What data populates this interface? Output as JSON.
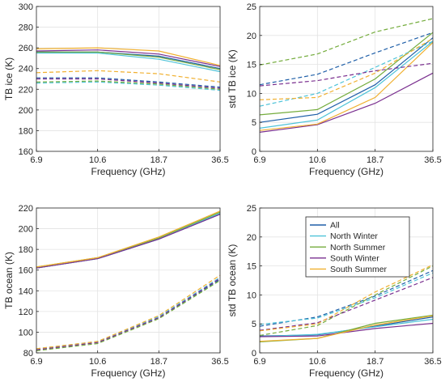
{
  "colors": {
    "All": "#1f5fa8",
    "North Winter": "#4ec3d8",
    "North Summer": "#74ac3c",
    "South Winter": "#7a2f8f",
    "South Summer": "#f0b030",
    "axis": "#262626",
    "grid": "#ffffff"
  },
  "legend_entries": [
    "All",
    "North Winter",
    "North Summer",
    "South Winter",
    "South Summer"
  ],
  "chart_data": [
    {
      "type": "line",
      "position": "top-left",
      "x": [
        "6.9",
        "10.6",
        "18.7",
        "36.5"
      ],
      "xlabel": "Frequency (GHz)",
      "ylabel": "TB ice (K)",
      "ylim": [
        160,
        300
      ],
      "yticks": [
        "160",
        "180",
        "200",
        "220",
        "240",
        "260",
        "280",
        "300"
      ],
      "legend": "none",
      "series": [
        {
          "name": "All",
          "style": "solid",
          "values": [
            256,
            256,
            252,
            240
          ]
        },
        {
          "name": "North Winter",
          "style": "solid",
          "values": [
            255,
            255,
            249,
            237
          ]
        },
        {
          "name": "North Summer",
          "style": "solid",
          "values": [
            256,
            256,
            251,
            239
          ]
        },
        {
          "name": "South Winter",
          "style": "solid",
          "values": [
            257,
            258,
            254,
            242
          ]
        },
        {
          "name": "South Summer",
          "style": "solid",
          "values": [
            259,
            260,
            257,
            243
          ]
        },
        {
          "name": "All",
          "style": "dashed",
          "values": [
            231,
            231,
            227,
            222
          ]
        },
        {
          "name": "North Winter",
          "style": "dashed",
          "values": [
            226,
            227,
            224,
            219
          ]
        },
        {
          "name": "North Summer",
          "style": "dashed",
          "values": [
            227,
            228,
            225,
            220
          ]
        },
        {
          "name": "South Winter",
          "style": "dashed",
          "values": [
            230,
            230,
            226,
            221
          ]
        },
        {
          "name": "South Summer",
          "style": "dashed",
          "values": [
            236,
            238,
            235,
            227
          ]
        }
      ]
    },
    {
      "type": "line",
      "position": "top-right",
      "x": [
        "6.9",
        "10.6",
        "18.7",
        "36.5"
      ],
      "xlabel": "Frequency (GHz)",
      "ylabel": "std TB ice (K)",
      "ylim": [
        0,
        25
      ],
      "yticks": [
        "0",
        "5",
        "10",
        "15",
        "20",
        "25"
      ],
      "legend": "none",
      "series": [
        {
          "name": "All",
          "style": "solid",
          "values": [
            5.0,
            6.4,
            11.5,
            19.6
          ]
        },
        {
          "name": "North Winter",
          "style": "solid",
          "values": [
            4.0,
            5.4,
            11.0,
            19.0
          ]
        },
        {
          "name": "North Summer",
          "style": "solid",
          "values": [
            6.3,
            7.2,
            12.5,
            20.5
          ]
        },
        {
          "name": "South Winter",
          "style": "solid",
          "values": [
            3.3,
            4.6,
            8.3,
            13.5
          ]
        },
        {
          "name": "South Summer",
          "style": "solid",
          "values": [
            3.6,
            4.7,
            9.3,
            18.8
          ]
        },
        {
          "name": "All",
          "style": "dashed",
          "values": [
            11.5,
            13.3,
            17.0,
            20.5
          ]
        },
        {
          "name": "North Winter",
          "style": "dashed",
          "values": [
            7.8,
            10.0,
            14.5,
            19.0
          ]
        },
        {
          "name": "North Summer",
          "style": "dashed",
          "values": [
            14.9,
            16.8,
            20.6,
            22.9
          ]
        },
        {
          "name": "South Winter",
          "style": "dashed",
          "values": [
            11.3,
            12.2,
            13.9,
            15.2
          ]
        },
        {
          "name": "South Summer",
          "style": "dashed",
          "values": [
            8.9,
            9.3,
            13.5,
            19.5
          ]
        }
      ]
    },
    {
      "type": "line",
      "position": "bottom-left",
      "x": [
        "6.9",
        "10.6",
        "18.7",
        "36.5"
      ],
      "xlabel": "Frequency (GHz)",
      "ylabel": "TB ocean (K)",
      "ylim": [
        80,
        220
      ],
      "yticks": [
        "80",
        "100",
        "120",
        "140",
        "160",
        "180",
        "200",
        "220"
      ],
      "legend": "none",
      "series": [
        {
          "name": "All",
          "style": "solid",
          "values": [
            162,
            171,
            190,
            214
          ]
        },
        {
          "name": "North Winter",
          "style": "solid",
          "values": [
            162,
            171,
            190,
            215
          ]
        },
        {
          "name": "North Summer",
          "style": "solid",
          "values": [
            163,
            172,
            191,
            216
          ]
        },
        {
          "name": "South Winter",
          "style": "solid",
          "values": [
            162,
            171,
            190,
            214
          ]
        },
        {
          "name": "South Summer",
          "style": "solid",
          "values": [
            163,
            172,
            192,
            217
          ]
        },
        {
          "name": "All",
          "style": "dashed",
          "values": [
            83,
            90,
            114,
            151
          ]
        },
        {
          "name": "North Winter",
          "style": "dashed",
          "values": [
            84,
            91,
            115,
            153
          ]
        },
        {
          "name": "North Summer",
          "style": "dashed",
          "values": [
            82,
            89,
            113,
            150
          ]
        },
        {
          "name": "South Winter",
          "style": "dashed",
          "values": [
            83,
            90,
            114,
            152
          ]
        },
        {
          "name": "South Summer",
          "style": "dashed",
          "values": [
            84,
            91,
            116,
            155
          ]
        }
      ]
    },
    {
      "type": "line",
      "position": "bottom-right",
      "x": [
        "6.9",
        "10.6",
        "18.7",
        "36.5"
      ],
      "xlabel": "Frequency (GHz)",
      "ylabel": "std TB ocean (K)",
      "ylim": [
        0,
        25
      ],
      "yticks": [
        "0",
        "5",
        "10",
        "15",
        "20",
        "25"
      ],
      "legend": "top-center",
      "series": [
        {
          "name": "All",
          "style": "solid",
          "values": [
            2.9,
            3.1,
            4.6,
            6.2
          ]
        },
        {
          "name": "North Winter",
          "style": "solid",
          "values": [
            2.8,
            3.2,
            4.5,
            5.8
          ]
        },
        {
          "name": "North Summer",
          "style": "solid",
          "values": [
            1.9,
            2.5,
            5.1,
            6.5
          ]
        },
        {
          "name": "South Winter",
          "style": "solid",
          "values": [
            2.8,
            2.9,
            4.2,
            5.1
          ]
        },
        {
          "name": "South Summer",
          "style": "solid",
          "values": [
            2.0,
            2.5,
            4.8,
            6.4
          ]
        },
        {
          "name": "All",
          "style": "dashed",
          "values": [
            4.6,
            6.2,
            9.8,
            14.2
          ]
        },
        {
          "name": "North Winter",
          "style": "dashed",
          "values": [
            4.9,
            6.0,
            9.5,
            13.8
          ]
        },
        {
          "name": "North Summer",
          "style": "dashed",
          "values": [
            3.0,
            4.7,
            10.0,
            15.0
          ]
        },
        {
          "name": "South Winter",
          "style": "dashed",
          "values": [
            3.9,
            5.2,
            9.1,
            13.0
          ]
        },
        {
          "name": "South Summer",
          "style": "dashed",
          "values": [
            3.8,
            5.0,
            10.5,
            15.2
          ]
        }
      ]
    }
  ]
}
